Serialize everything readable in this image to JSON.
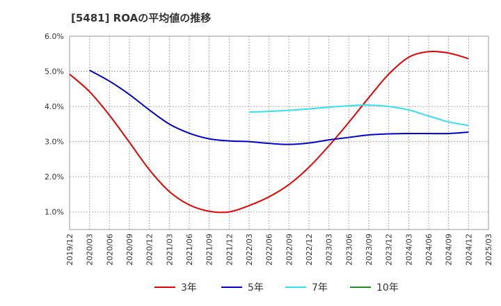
{
  "title": "[5481]  ROAの平均値の推移",
  "chart_data": {
    "type": "line",
    "title": "[5481]  ROAの平均値の推移",
    "x_ticks": [
      "2019/12",
      "2020/03",
      "2020/06",
      "2020/09",
      "2020/12",
      "2021/03",
      "2021/06",
      "2021/09",
      "2021/12",
      "2022/03",
      "2022/06",
      "2022/09",
      "2022/12",
      "2023/03",
      "2023/06",
      "2023/09",
      "2023/12",
      "2024/03",
      "2024/06",
      "2024/09",
      "2024/12",
      "2025/03"
    ],
    "y_ticks": [
      "1.0%",
      "2.0%",
      "3.0%",
      "4.0%",
      "5.0%",
      "6.0%"
    ],
    "ylim": [
      0.5,
      6.0
    ],
    "grid": true,
    "legend_position": "bottom",
    "series": [
      {
        "name": "3年",
        "color": "#e60000",
        "start_index": 0,
        "values": [
          4.92,
          4.42,
          3.75,
          2.98,
          2.2,
          1.58,
          1.2,
          1.02,
          1.0,
          1.18,
          1.43,
          1.78,
          2.27,
          2.88,
          3.55,
          4.25,
          4.92,
          5.4,
          5.56,
          5.52,
          5.36
        ]
      },
      {
        "name": "5年",
        "color": "#0000cc",
        "start_index": 1,
        "values": [
          5.03,
          4.72,
          4.34,
          3.9,
          3.5,
          3.24,
          3.08,
          3.02,
          3.0,
          2.95,
          2.92,
          2.96,
          3.05,
          3.12,
          3.19,
          3.22,
          3.23,
          3.23,
          3.23,
          3.27
        ]
      },
      {
        "name": "7年",
        "color": "#33e0ee",
        "start_index": 9,
        "values": [
          3.84,
          3.86,
          3.89,
          3.93,
          3.98,
          4.02,
          4.04,
          4.0,
          3.9,
          3.73,
          3.56,
          3.46
        ]
      },
      {
        "name": "10年",
        "color": "#228b22",
        "start_index": 0,
        "values": []
      }
    ]
  }
}
